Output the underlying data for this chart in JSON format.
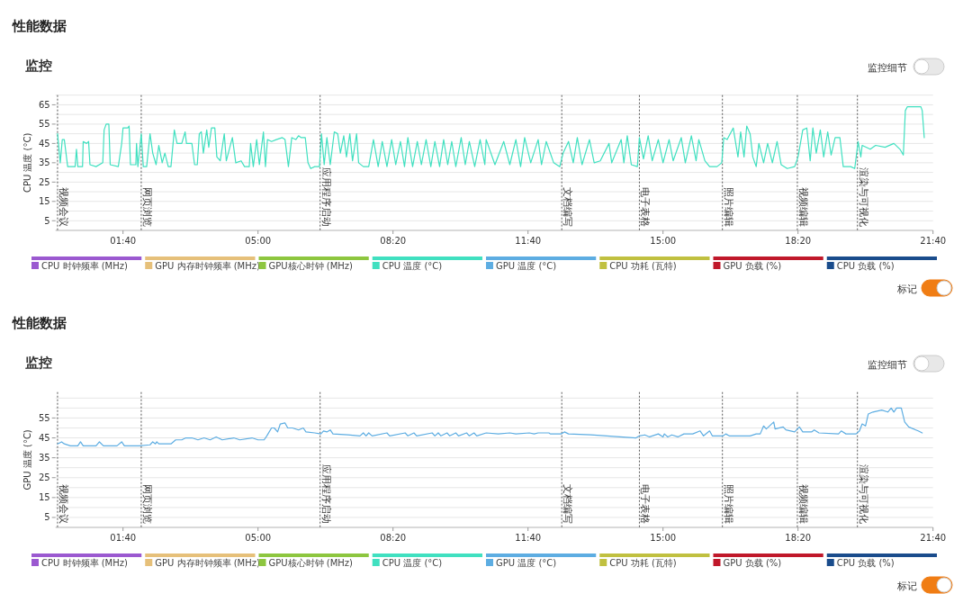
{
  "chart_data": [
    {
      "type": "line",
      "title": "性能数据",
      "subtitle": "监控",
      "ylabel": "CPU 温度 (°C)",
      "annotations": [
        "监控细节",
        "标记"
      ],
      "xlim": [
        0,
        1300
      ],
      "ylim": [
        0,
        70
      ],
      "xticks": [
        {
          "value": 100,
          "label": "01:40"
        },
        {
          "value": 300,
          "label": "05:00"
        },
        {
          "value": 500,
          "label": "08:20"
        },
        {
          "value": 700,
          "label": "11:40"
        },
        {
          "value": 900,
          "label": "15:00"
        },
        {
          "value": 1100,
          "label": "18:20"
        },
        {
          "value": 1300,
          "label": "21:40"
        }
      ],
      "yticks": [
        5,
        {
          "value": 10,
          "label": null
        },
        15,
        {
          "value": 20,
          "label": null
        },
        25,
        {
          "value": 30,
          "label": null
        },
        35,
        {
          "value": 40,
          "label": null
        },
        45,
        {
          "value": 50,
          "label": null
        },
        55,
        {
          "value": 60,
          "label": null
        },
        65,
        {
          "value": 70,
          "label": null
        }
      ],
      "grid": "y",
      "legend": "bottom",
      "ref_lines": [
        {
          "axis": "x",
          "value": 3,
          "label": "视频会议"
        },
        {
          "axis": "x",
          "value": 127,
          "label": "网页浏览"
        },
        {
          "axis": "x",
          "value": 392,
          "label": "应用程序启动"
        },
        {
          "axis": "x",
          "value": 750,
          "label": "文档编写"
        },
        {
          "axis": "x",
          "value": 865,
          "label": "电子表格"
        },
        {
          "axis": "x",
          "value": 988,
          "label": "照片编辑"
        },
        {
          "axis": "x",
          "value": 1099,
          "label": "视频编辑"
        },
        {
          "axis": "x",
          "value": 1188,
          "label": "渲染与可视化"
        }
      ],
      "series": [
        {
          "name": "CPU 时钟频率 (MHz)",
          "color": "#9b59d0"
        },
        {
          "name": "GPU 内存时钟频率 (MHz)",
          "color": "#e6c07a"
        },
        {
          "name": "GPU核心时钟 (MHz)",
          "color": "#8dc63f"
        },
        {
          "name": "CPU 温度 (°C)",
          "color": "#40e0c0",
          "x": [
            3,
            7,
            10,
            13,
            18,
            29,
            31,
            33,
            40,
            41,
            46,
            49,
            51,
            60,
            70,
            72,
            75,
            79,
            81,
            93,
            98,
            100,
            107,
            109,
            111,
            119,
            120,
            122,
            127,
            130,
            135,
            140,
            144,
            149,
            153,
            158,
            162,
            167,
            171,
            176,
            180,
            187,
            192,
            194,
            202,
            206,
            210,
            213,
            216,
            219,
            224,
            227,
            231,
            236,
            239,
            244,
            250,
            253,
            262,
            267,
            275,
            280,
            287,
            289,
            293,
            298,
            302,
            308,
            311,
            314,
            320,
            327,
            336,
            340,
            345,
            350,
            356,
            360,
            364,
            370,
            374,
            378,
            384,
            391,
            394,
            398,
            402,
            407,
            413,
            418,
            422,
            427,
            431,
            436,
            440,
            446,
            449,
            456,
            464,
            471,
            478,
            484,
            491,
            498,
            504,
            511,
            517,
            522,
            529,
            536,
            542,
            549,
            556,
            562,
            569,
            575,
            581,
            587,
            593,
            601,
            607,
            613,
            621,
            629,
            636,
            638,
            651,
            664,
            673,
            682,
            689,
            695,
            704,
            715,
            720,
            727,
            738,
            747,
            752,
            760,
            767,
            773,
            780,
            791,
            798,
            807,
            820,
            824,
            838,
            842,
            847,
            853,
            862,
            865,
            871,
            878,
            884,
            893,
            900,
            909,
            915,
            927,
            933,
            942,
            949,
            953,
            962,
            969,
            980,
            987,
            990,
            995,
            1004,
            1011,
            1015,
            1020,
            1024,
            1029,
            1033,
            1038,
            1042,
            1049,
            1055,
            1062,
            1069,
            1075,
            1084,
            1095,
            1100,
            1107,
            1113,
            1118,
            1122,
            1127,
            1133,
            1138,
            1144,
            1149,
            1155,
            1162,
            1167,
            1178,
            1184,
            1189,
            1193,
            1195,
            1207,
            1215,
            1229,
            1242,
            1251,
            1256,
            1259,
            1262,
            1273,
            1282,
            1284,
            1287
          ],
          "values": [
            50,
            35,
            47,
            47,
            33,
            33,
            42,
            33,
            33,
            46,
            45,
            46,
            34,
            33,
            35,
            52,
            55,
            55,
            34,
            33,
            45,
            53,
            53,
            54,
            34,
            34,
            45,
            33,
            50,
            33,
            33,
            50,
            40,
            34,
            44,
            35,
            40,
            33,
            33,
            52,
            45,
            45,
            51,
            45,
            45,
            34,
            34,
            50,
            51,
            40,
            52,
            43,
            53,
            53,
            38,
            36,
            50,
            36,
            48,
            35,
            36,
            33,
            33,
            45,
            33,
            47,
            34,
            51,
            33,
            47,
            46,
            47,
            48,
            47,
            33,
            48,
            47,
            49,
            48,
            48,
            35,
            32,
            33,
            33,
            50,
            34,
            48,
            34,
            51,
            50,
            40,
            49,
            38,
            50,
            36,
            50,
            35,
            33,
            33,
            47,
            33,
            46,
            33,
            47,
            34,
            46,
            33,
            48,
            33,
            46,
            34,
            47,
            33,
            46,
            33,
            47,
            34,
            46,
            33,
            48,
            34,
            46,
            33,
            47,
            34,
            47,
            34,
            46,
            34,
            47,
            33,
            48,
            35,
            47,
            34,
            46,
            35,
            33,
            40,
            46,
            35,
            48,
            34,
            47,
            35,
            36,
            45,
            35,
            47,
            35,
            49,
            34,
            33,
            48,
            37,
            49,
            36,
            47,
            35,
            47,
            36,
            48,
            35,
            49,
            36,
            47,
            36,
            33,
            33,
            35,
            48,
            47,
            53,
            38,
            51,
            38,
            54,
            50,
            38,
            33,
            45,
            35,
            45,
            35,
            46,
            34,
            32,
            33,
            38,
            52,
            53,
            36,
            53,
            40,
            52,
            38,
            51,
            39,
            48,
            48,
            33,
            33,
            32,
            46,
            38,
            44,
            42,
            44,
            43,
            45,
            42,
            39,
            62,
            64,
            64,
            64,
            62,
            48
          ]
        },
        {
          "name": "GPU 温度 (°C)",
          "color": "#5dade2"
        },
        {
          "name": "CPU 功耗 (瓦特)",
          "color": "#c0c040"
        },
        {
          "name": "GPU 负载 (%)",
          "color": "#c0182a"
        },
        {
          "name": "CPU 负载 (%)",
          "color": "#1a4c8c"
        }
      ]
    },
    {
      "type": "line",
      "title": "性能数据",
      "subtitle": "监控",
      "ylabel": "GPU 温度 (°C)",
      "annotations": [
        "监控细节",
        "标记"
      ],
      "xlim": [
        0,
        1300
      ],
      "ylim": [
        0,
        68
      ],
      "xticks": [
        {
          "value": 100,
          "label": "01:40"
        },
        {
          "value": 300,
          "label": "05:00"
        },
        {
          "value": 500,
          "label": "08:20"
        },
        {
          "value": 700,
          "label": "11:40"
        },
        {
          "value": 900,
          "label": "15:00"
        },
        {
          "value": 1100,
          "label": "18:20"
        },
        {
          "value": 1300,
          "label": "21:40"
        }
      ],
      "yticks": [
        5,
        {
          "value": 10,
          "label": null
        },
        15,
        {
          "value": 20,
          "label": null
        },
        25,
        {
          "value": 30,
          "label": null
        },
        35,
        {
          "value": 40,
          "label": null
        },
        45,
        {
          "value": 50,
          "label": null
        },
        55,
        {
          "value": 60,
          "label": null
        },
        {
          "value": 65,
          "label": null
        }
      ],
      "grid": "y",
      "legend": "bottom",
      "ref_lines": [
        {
          "axis": "x",
          "value": 3,
          "label": "视频会议"
        },
        {
          "axis": "x",
          "value": 127,
          "label": "网页浏览"
        },
        {
          "axis": "x",
          "value": 392,
          "label": "应用程序启动"
        },
        {
          "axis": "x",
          "value": 750,
          "label": "文档编写"
        },
        {
          "axis": "x",
          "value": 865,
          "label": "电子表格"
        },
        {
          "axis": "x",
          "value": 988,
          "label": "照片编辑"
        },
        {
          "axis": "x",
          "value": 1099,
          "label": "视频编辑"
        },
        {
          "axis": "x",
          "value": 1188,
          "label": "渲染与可视化"
        }
      ],
      "series": [
        {
          "name": "CPU 时钟频率 (MHz)",
          "color": "#9b59d0"
        },
        {
          "name": "GPU 内存时钟频率 (MHz)",
          "color": "#e6c07a"
        },
        {
          "name": "GPU核心时钟 (MHz)",
          "color": "#8dc63f"
        },
        {
          "name": "CPU 温度 (°C)",
          "color": "#40e0c0"
        },
        {
          "name": "GPU 温度 (°C)",
          "color": "#5dade2",
          "x": [
            3,
            9,
            13,
            22,
            33,
            37,
            41,
            60,
            65,
            71,
            91,
            98,
            102,
            124,
            140,
            144,
            148,
            150,
            153,
            171,
            178,
            187,
            193,
            202,
            211,
            220,
            229,
            238,
            247,
            264,
            273,
            291,
            300,
            309,
            313,
            320,
            324,
            329,
            333,
            340,
            344,
            351,
            360,
            367,
            371,
            384,
            393,
            397,
            402,
            407,
            411,
            433,
            451,
            456,
            460,
            464,
            469,
            491,
            495,
            518,
            522,
            531,
            535,
            558,
            562,
            567,
            571,
            580,
            584,
            593,
            597,
            609,
            613,
            620,
            624,
            638,
            656,
            673,
            682,
            702,
            709,
            715,
            731,
            733,
            749,
            754,
            760,
            793,
            860,
            865,
            873,
            880,
            893,
            900,
            902,
            907,
            913,
            922,
            931,
            944,
            955,
            960,
            969,
            973,
            989,
            993,
            998,
            1029,
            1038,
            1044,
            1049,
            1053,
            1064,
            1066,
            1078,
            1082,
            1095,
            1102,
            1107,
            1120,
            1124,
            1131,
            1160,
            1164,
            1171,
            1186,
            1191,
            1195,
            1200,
            1204,
            1211,
            1224,
            1233,
            1238,
            1242,
            1246,
            1253,
            1258,
            1264,
            1278,
            1284
          ],
          "values": [
            42,
            43,
            42,
            41,
            41,
            43,
            41,
            41,
            43,
            41,
            41,
            43,
            41,
            41,
            41.5,
            43,
            42,
            43,
            42,
            42,
            44,
            44,
            45,
            45,
            44,
            45,
            44,
            45.5,
            44,
            45,
            44,
            45,
            44,
            44,
            46,
            50,
            50,
            48,
            52,
            52.5,
            50,
            50,
            49,
            50,
            48,
            47.5,
            47,
            48.5,
            48,
            49,
            47,
            46.5,
            46,
            47.5,
            46,
            47.5,
            46,
            47.5,
            46,
            47.5,
            46,
            47.5,
            46,
            47.5,
            46,
            47.5,
            46,
            47.5,
            46,
            47.5,
            46,
            47.5,
            46,
            47.5,
            46,
            47.5,
            47,
            47.5,
            47,
            47.5,
            47,
            47.5,
            47.5,
            47,
            47,
            48,
            47,
            46.5,
            45,
            46,
            46.5,
            45.5,
            47,
            45.5,
            47,
            45.5,
            46.5,
            45.5,
            47,
            47,
            48.5,
            46,
            48.5,
            46,
            46,
            47,
            46,
            46,
            47,
            47,
            51,
            49.5,
            53,
            49.5,
            50.5,
            49,
            48,
            50.5,
            48,
            48,
            49,
            47.5,
            47,
            48.5,
            47,
            47,
            48.5,
            52,
            51,
            57,
            58,
            59,
            58,
            60,
            58,
            60,
            60,
            53,
            50.5,
            48.5,
            47.5
          ]
        },
        {
          "name": "CPU 功耗 (瓦特)",
          "color": "#c0c040"
        },
        {
          "name": "GPU 负载 (%)",
          "color": "#c0182a"
        },
        {
          "name": "CPU 负载 (%)",
          "color": "#1a4c8c"
        }
      ]
    }
  ]
}
